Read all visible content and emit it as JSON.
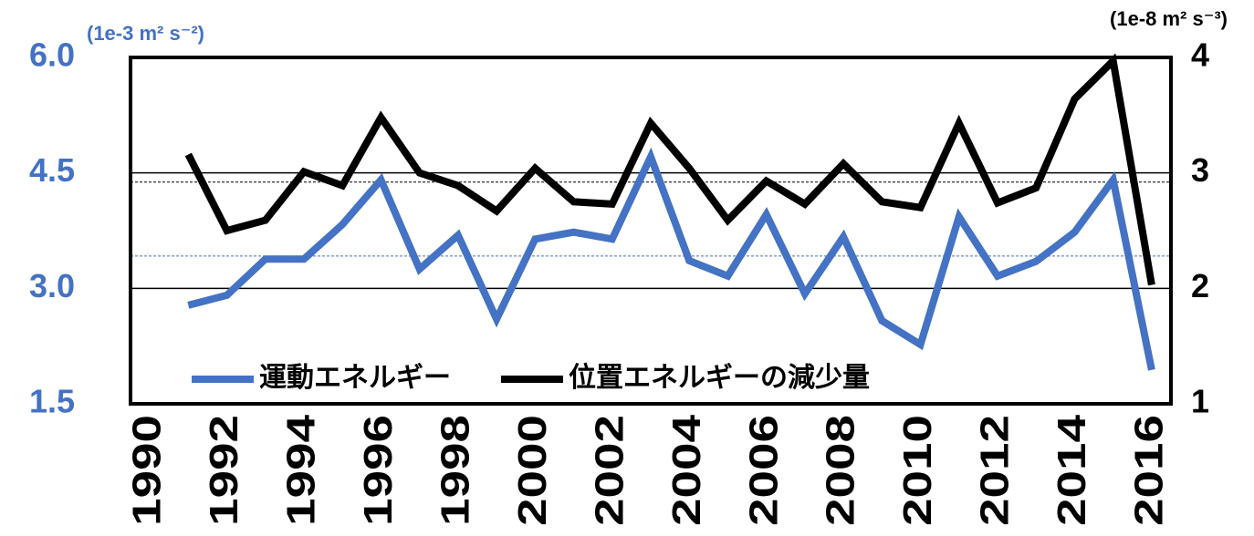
{
  "chart_data": {
    "type": "line",
    "y_unit": "(1e-3 m² s⁻²)",
    "y2_unit": "(1e-8 m² s⁻³)",
    "categories": [
      "1990",
      null,
      "1992",
      null,
      "1994",
      null,
      "1996",
      null,
      "1998",
      null,
      "2000",
      null,
      "2002",
      null,
      "2004",
      null,
      "2006",
      null,
      "2008",
      null,
      "2010",
      null,
      "2012",
      null,
      "2014",
      null,
      "2016"
    ],
    "series": [
      {
        "name": "運動エネルギー",
        "color": "#4472c4",
        "axis": "y",
        "values": [
          null,
          2.78,
          2.91,
          3.38,
          3.38,
          3.83,
          4.41,
          3.25,
          3.69,
          2.6,
          3.64,
          3.73,
          3.64,
          4.71,
          3.36,
          3.16,
          3.96,
          2.93,
          3.67,
          2.58,
          2.27,
          3.93,
          3.16,
          3.35,
          3.73,
          4.41,
          1.94
        ]
      },
      {
        "name": "位置エネルギーの減少量",
        "color": "#000000",
        "axis": "y2",
        "values": [
          null,
          3.16,
          2.5,
          2.59,
          3.01,
          2.89,
          3.48,
          3.0,
          2.89,
          2.67,
          3.04,
          2.75,
          2.73,
          3.43,
          3.04,
          2.59,
          2.93,
          2.73,
          3.08,
          2.75,
          2.7,
          3.43,
          2.74,
          2.87,
          3.64,
          3.97,
          2.03
        ]
      }
    ],
    "ylim": [
      1.5,
      6.0
    ],
    "yticks": [
      {
        "value": 1.5,
        "label": "1.5"
      },
      {
        "value": 3.0,
        "label": "3.0"
      },
      {
        "value": 4.5,
        "label": "4.5"
      },
      {
        "value": 6.0,
        "label": "6.0"
      }
    ],
    "y2lim": [
      1,
      4
    ],
    "y2ticks": [
      1,
      2,
      3,
      4
    ],
    "y_tick_color": "#4472c4",
    "y2_tick_color": "#000000",
    "grid": true,
    "reference_lines": [
      {
        "axis": "y",
        "value": 3.42,
        "color": "#4472c4"
      },
      {
        "axis": "y2",
        "value": 2.92,
        "color": "#000000"
      }
    ],
    "legend": "lower left"
  }
}
